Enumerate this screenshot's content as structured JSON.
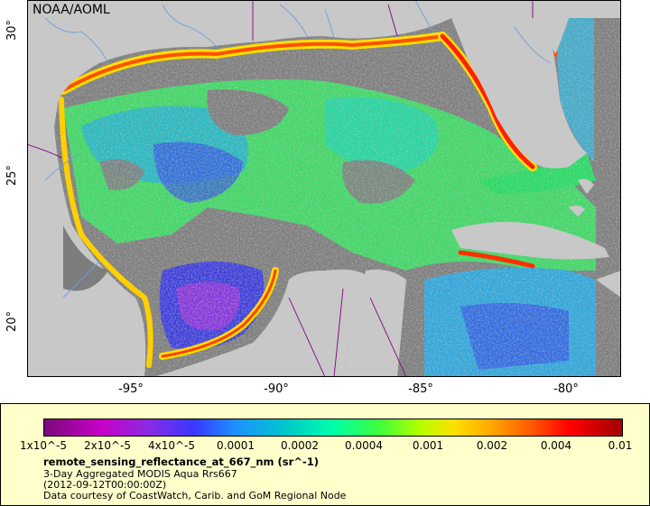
{
  "credit": "NOAA/AOML",
  "axes": {
    "y_ticks": [
      "30°",
      "25°",
      "20°"
    ],
    "x_ticks": [
      "-95°",
      "-90°",
      "-85°",
      "-80°"
    ]
  },
  "colorbar": {
    "labels": [
      "1x10^-5",
      "2x10^-5",
      "4x10^-5",
      "0.0001",
      "0.0002",
      "0.0004",
      "0.001",
      "0.002",
      "0.004",
      "0.01"
    ]
  },
  "legend": {
    "title": "remote_sensing_reflectance_at_667_nm (sr^-1)",
    "line1": "3-Day Aggregated MODIS Aqua Rrs667",
    "line2": "(2012-09-12T00:00:00Z)",
    "line3": "Data courtesy of CoastWatch, Carib. and GoM Regional Node"
  },
  "colors": {
    "land": "#c8c8c8",
    "nodata": "#7d7d7d",
    "rivers": "#6fa0d8",
    "borders": "#800080"
  }
}
